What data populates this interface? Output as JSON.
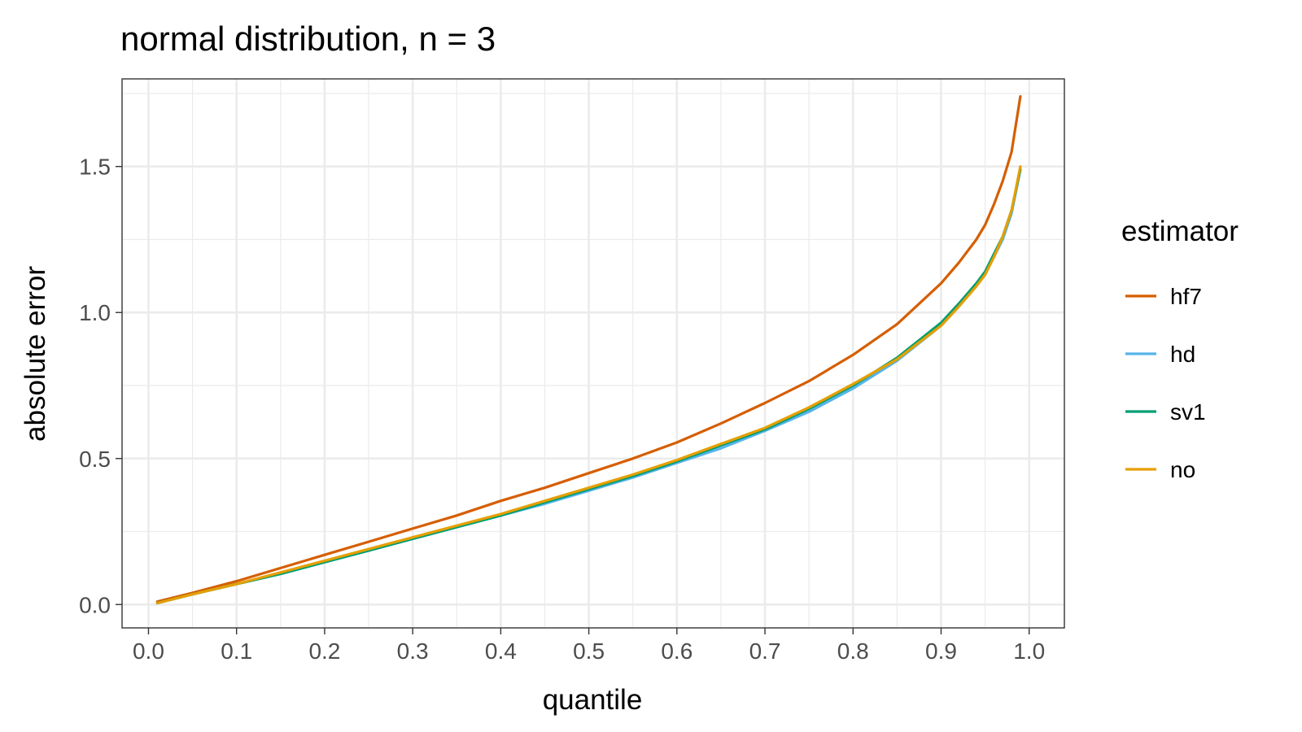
{
  "chart_data": {
    "type": "line",
    "title": "normal distribution, n = 3",
    "xlabel": "quantile",
    "ylabel": "absolute error",
    "xlim": [
      -0.03,
      1.04
    ],
    "ylim": [
      -0.08,
      1.8
    ],
    "x_ticks": [
      0.0,
      0.1,
      0.2,
      0.3,
      0.4,
      0.5,
      0.6,
      0.7,
      0.8,
      0.9,
      1.0
    ],
    "x_tick_labels": [
      "0.0",
      "0.1",
      "0.2",
      "0.3",
      "0.4",
      "0.5",
      "0.6",
      "0.7",
      "0.8",
      "0.9",
      "1.0"
    ],
    "y_ticks": [
      0.0,
      0.5,
      1.0,
      1.5
    ],
    "y_tick_labels": [
      "0.0",
      "0.5",
      "1.0",
      "1.5"
    ],
    "grid": true,
    "legend": {
      "title": "estimator",
      "position": "right"
    },
    "x": [
      0.01,
      0.05,
      0.1,
      0.15,
      0.2,
      0.25,
      0.3,
      0.35,
      0.4,
      0.45,
      0.5,
      0.55,
      0.6,
      0.65,
      0.7,
      0.75,
      0.8,
      0.85,
      0.9,
      0.92,
      0.94,
      0.95,
      0.96,
      0.97,
      0.98,
      0.99
    ],
    "series": [
      {
        "name": "hf7",
        "color": "#D55E00",
        "values": [
          0.01,
          0.04,
          0.08,
          0.125,
          0.17,
          0.215,
          0.26,
          0.305,
          0.355,
          0.4,
          0.45,
          0.5,
          0.555,
          0.62,
          0.69,
          0.765,
          0.855,
          0.96,
          1.1,
          1.17,
          1.25,
          1.3,
          1.37,
          1.45,
          1.55,
          1.74
        ]
      },
      {
        "name": "hd",
        "color": "#56B4E9",
        "values": [
          0.005,
          0.035,
          0.07,
          0.105,
          0.145,
          0.185,
          0.225,
          0.265,
          0.305,
          0.345,
          0.39,
          0.435,
          0.485,
          0.535,
          0.595,
          0.66,
          0.74,
          0.835,
          0.955,
          1.02,
          1.09,
          1.13,
          1.19,
          1.25,
          1.34,
          1.49
        ]
      },
      {
        "name": "sv1",
        "color": "#009E73",
        "values": [
          0.005,
          0.035,
          0.07,
          0.105,
          0.145,
          0.185,
          0.225,
          0.265,
          0.305,
          0.35,
          0.395,
          0.44,
          0.49,
          0.545,
          0.6,
          0.67,
          0.75,
          0.845,
          0.965,
          1.03,
          1.1,
          1.14,
          1.2,
          1.26,
          1.35,
          1.49
        ]
      },
      {
        "name": "no",
        "color": "#E69F00",
        "values": [
          0.005,
          0.035,
          0.07,
          0.11,
          0.15,
          0.19,
          0.23,
          0.27,
          0.31,
          0.355,
          0.4,
          0.445,
          0.495,
          0.55,
          0.605,
          0.675,
          0.755,
          0.84,
          0.955,
          1.02,
          1.09,
          1.13,
          1.19,
          1.26,
          1.35,
          1.5
        ]
      }
    ]
  }
}
